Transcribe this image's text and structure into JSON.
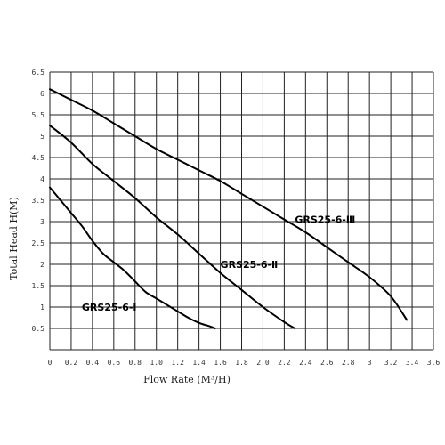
{
  "chart_data": {
    "type": "line",
    "title": "",
    "xlabel": "Flow Rate (M³/H)",
    "ylabel": "Total Head H(M)",
    "xlim": [
      0,
      3.6
    ],
    "ylim": [
      0,
      6.5
    ],
    "x_ticks": [
      "0",
      "0.2",
      "0.4",
      "0.6",
      "0.8",
      "1.0",
      "1.2",
      "1.4",
      "1.6",
      "1.8",
      "2.0",
      "2.2",
      "2.4",
      "2.6",
      "2.8",
      "3",
      "3.2",
      "3.4",
      "3.6"
    ],
    "y_ticks": [
      "0.5",
      "1",
      "1.5",
      "2",
      "2.5",
      "3",
      "3.5",
      "4",
      "4.5",
      "5",
      "5.5",
      "6",
      "6.5"
    ],
    "grid": true,
    "legend": "none",
    "series": [
      {
        "name": "GRS25-6-Ⅰ",
        "x": [
          0,
          0.1,
          0.2,
          0.3,
          0.4,
          0.5,
          0.6,
          0.7,
          0.8,
          0.9,
          1.0,
          1.1,
          1.2,
          1.3,
          1.4,
          1.5,
          1.55
        ],
        "y": [
          3.8,
          3.5,
          3.2,
          2.9,
          2.55,
          2.25,
          2.05,
          1.85,
          1.6,
          1.35,
          1.2,
          1.05,
          0.9,
          0.75,
          0.63,
          0.55,
          0.5
        ]
      },
      {
        "name": "GRS25-6-Ⅱ",
        "x": [
          0,
          0.2,
          0.4,
          0.6,
          0.8,
          1.0,
          1.2,
          1.4,
          1.6,
          1.8,
          2.0,
          2.2,
          2.3
        ],
        "y": [
          5.25,
          4.85,
          4.35,
          3.95,
          3.55,
          3.1,
          2.7,
          2.25,
          1.8,
          1.4,
          1.0,
          0.65,
          0.5
        ]
      },
      {
        "name": "GRS25-6-Ⅲ",
        "x": [
          0,
          0.2,
          0.4,
          0.6,
          0.8,
          1.0,
          1.2,
          1.4,
          1.6,
          1.8,
          2.0,
          2.2,
          2.4,
          2.6,
          2.8,
          3.0,
          3.2,
          3.35
        ],
        "y": [
          6.1,
          5.85,
          5.6,
          5.3,
          5.0,
          4.7,
          4.45,
          4.2,
          3.95,
          3.65,
          3.35,
          3.05,
          2.75,
          2.4,
          2.05,
          1.7,
          1.25,
          0.7
        ]
      }
    ]
  }
}
